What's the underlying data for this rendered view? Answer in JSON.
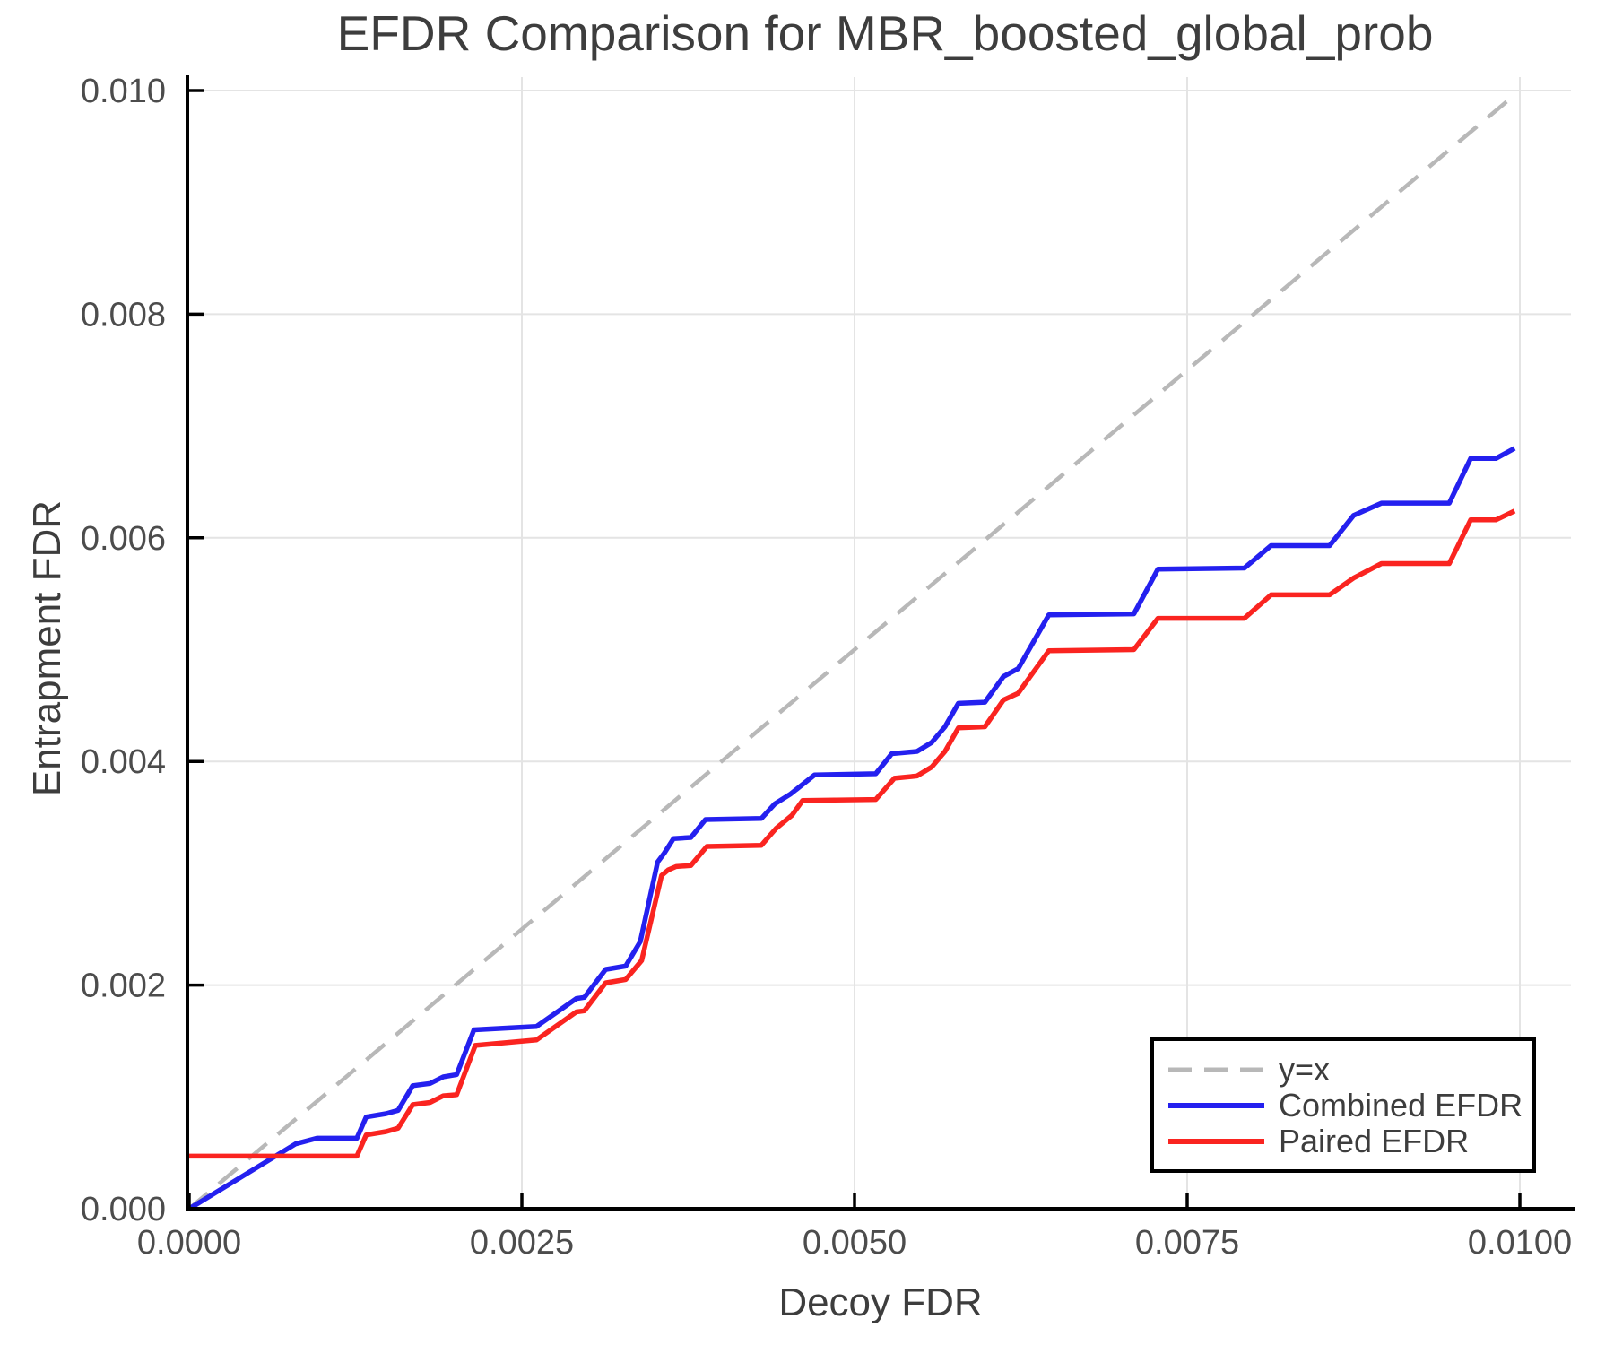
{
  "title": "EFDR Comparison for MBR_boosted_global_prob",
  "x_axis": {
    "label": "Decoy FDR",
    "ticks": [
      "0.0000",
      "0.0025",
      "0.0050",
      "0.0075",
      "0.0100"
    ],
    "tick_values": [
      0.0,
      0.0025,
      0.005,
      0.0075,
      0.01
    ]
  },
  "y_axis": {
    "label": "Entrapment FDR",
    "ticks": [
      "0.000",
      "0.002",
      "0.004",
      "0.006",
      "0.008",
      "0.010"
    ],
    "tick_values": [
      0.0,
      0.002,
      0.004,
      0.006,
      0.008,
      0.01
    ]
  },
  "legend": {
    "entries": [
      {
        "label": "y=x",
        "color": "#b8b8b8",
        "dashed": true
      },
      {
        "label": "Combined EFDR",
        "color": "#2420ef",
        "dashed": false
      },
      {
        "label": "Paired EFDR",
        "color": "#fa2420",
        "dashed": false
      }
    ]
  },
  "colors": {
    "grid": "#e4e4e4",
    "spine": "#000000",
    "tick_label": "#4c4c4c",
    "text": "#3d3d3d",
    "combined": "#2420ef",
    "paired": "#fa2420",
    "identity": "#b8b8b8"
  },
  "chart_data": {
    "type": "line",
    "title": "EFDR Comparison for MBR_boosted_global_prob",
    "xlabel": "Decoy FDR",
    "ylabel": "Entrapment FDR",
    "xlim": [
      0.0,
      0.0104
    ],
    "ylim": [
      0.0,
      0.0101
    ],
    "grid": true,
    "legend_position": "lower right",
    "series": [
      {
        "name": "y=x",
        "style": "dashed",
        "color": "#b8b8b8",
        "points": [
          [
            0.0,
            0.0
          ],
          [
            0.00998,
            0.00998
          ]
        ]
      },
      {
        "name": "Combined EFDR",
        "style": "solid",
        "color": "#2420ef",
        "points": [
          [
            0.0,
            0.0
          ],
          [
            0.0008,
            0.00058
          ],
          [
            0.00096,
            0.00063
          ],
          [
            0.00126,
            0.00063
          ],
          [
            0.00133,
            0.00082
          ],
          [
            0.00148,
            0.00085
          ],
          [
            0.00157,
            0.00088
          ],
          [
            0.00168,
            0.0011
          ],
          [
            0.00181,
            0.00112
          ],
          [
            0.00191,
            0.00118
          ],
          [
            0.00201,
            0.0012
          ],
          [
            0.00214,
            0.0016
          ],
          [
            0.00261,
            0.00163
          ],
          [
            0.00291,
            0.00188
          ],
          [
            0.00297,
            0.00189
          ],
          [
            0.00313,
            0.00214
          ],
          [
            0.00328,
            0.00217
          ],
          [
            0.00339,
            0.00239
          ],
          [
            0.00352,
            0.0031
          ],
          [
            0.00357,
            0.00318
          ],
          [
            0.00364,
            0.00331
          ],
          [
            0.00377,
            0.00332
          ],
          [
            0.00388,
            0.00348
          ],
          [
            0.0043,
            0.00349
          ],
          [
            0.0044,
            0.00362
          ],
          [
            0.00452,
            0.00371
          ],
          [
            0.0047,
            0.00388
          ],
          [
            0.00516,
            0.00389
          ],
          [
            0.00528,
            0.00407
          ],
          [
            0.00547,
            0.00409
          ],
          [
            0.00558,
            0.00417
          ],
          [
            0.00568,
            0.00431
          ],
          [
            0.00578,
            0.00452
          ],
          [
            0.00598,
            0.00453
          ],
          [
            0.00612,
            0.00476
          ],
          [
            0.00623,
            0.00483
          ],
          [
            0.00646,
            0.00531
          ],
          [
            0.0071,
            0.00532
          ],
          [
            0.00728,
            0.00572
          ],
          [
            0.00793,
            0.00573
          ],
          [
            0.00813,
            0.00593
          ],
          [
            0.00857,
            0.00593
          ],
          [
            0.00875,
            0.0062
          ],
          [
            0.00896,
            0.00631
          ],
          [
            0.00947,
            0.00631
          ],
          [
            0.00963,
            0.00671
          ],
          [
            0.00982,
            0.00671
          ],
          [
            0.00996,
            0.0068
          ]
        ]
      },
      {
        "name": "Paired EFDR",
        "style": "solid",
        "color": "#fa2420",
        "points": [
          [
            0.0,
            0.00047
          ],
          [
            0.00126,
            0.00047
          ],
          [
            0.00133,
            0.00066
          ],
          [
            0.00148,
            0.00069
          ],
          [
            0.00157,
            0.00072
          ],
          [
            0.00168,
            0.00093
          ],
          [
            0.00181,
            0.00095
          ],
          [
            0.00191,
            0.00101
          ],
          [
            0.00201,
            0.00102
          ],
          [
            0.00215,
            0.00146
          ],
          [
            0.00261,
            0.00151
          ],
          [
            0.00291,
            0.00176
          ],
          [
            0.00297,
            0.00177
          ],
          [
            0.00313,
            0.00202
          ],
          [
            0.00328,
            0.00205
          ],
          [
            0.0034,
            0.00222
          ],
          [
            0.00355,
            0.00298
          ],
          [
            0.0036,
            0.00303
          ],
          [
            0.00366,
            0.00306
          ],
          [
            0.00377,
            0.00307
          ],
          [
            0.00389,
            0.00324
          ],
          [
            0.0043,
            0.00325
          ],
          [
            0.00441,
            0.0034
          ],
          [
            0.00453,
            0.00352
          ],
          [
            0.00461,
            0.00365
          ],
          [
            0.00516,
            0.00366
          ],
          [
            0.0053,
            0.00385
          ],
          [
            0.00547,
            0.00387
          ],
          [
            0.00558,
            0.00395
          ],
          [
            0.00568,
            0.00409
          ],
          [
            0.00578,
            0.0043
          ],
          [
            0.00598,
            0.00431
          ],
          [
            0.00612,
            0.00455
          ],
          [
            0.00623,
            0.00461
          ],
          [
            0.00646,
            0.00499
          ],
          [
            0.0071,
            0.005
          ],
          [
            0.00728,
            0.00528
          ],
          [
            0.00793,
            0.00528
          ],
          [
            0.00813,
            0.00549
          ],
          [
            0.00857,
            0.00549
          ],
          [
            0.00875,
            0.00564
          ],
          [
            0.00896,
            0.00577
          ],
          [
            0.00947,
            0.00577
          ],
          [
            0.00963,
            0.00616
          ],
          [
            0.00982,
            0.00616
          ],
          [
            0.00996,
            0.00624
          ]
        ]
      }
    ]
  }
}
